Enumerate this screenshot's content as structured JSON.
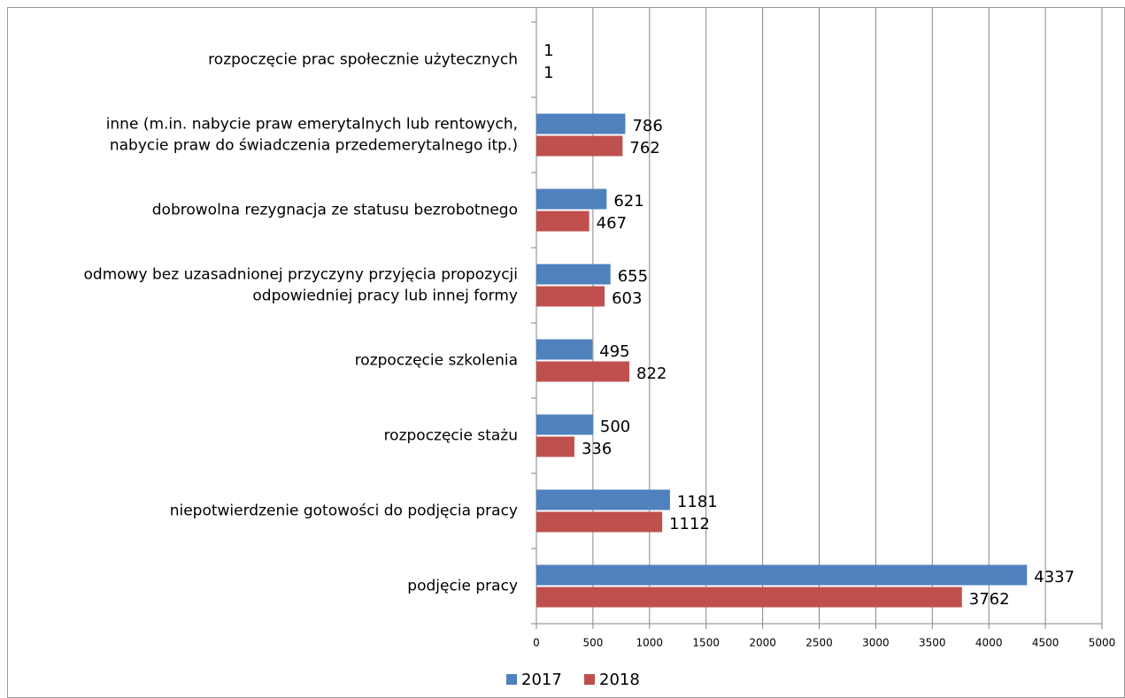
{
  "chart_data": {
    "type": "bar",
    "orientation": "horizontal",
    "categories": [
      [
        "rozpoczęcie prac społecznie użytecznych"
      ],
      [
        "inne (m.in. nabycie praw emerytalnych lub rentowych,",
        "nabycie praw do świadczenia przedemerytalnego itp.)"
      ],
      [
        "dobrowolna rezygnacja ze statusu bezrobotnego"
      ],
      [
        "odmowy bez uzasadnionej przyczyny przyjęcia propozycji",
        "odpowiedniej pracy lub innej formy"
      ],
      [
        "rozpoczęcie szkolenia"
      ],
      [
        "rozpoczęcie stażu"
      ],
      [
        "niepotwierdzenie gotowości do podjęcia pracy"
      ],
      [
        "podjęcie pracy"
      ]
    ],
    "series": [
      {
        "name": "2017",
        "color": "#4f81bd",
        "values": [
          1,
          786,
          621,
          655,
          495,
          500,
          1181,
          4337
        ]
      },
      {
        "name": "2018",
        "color": "#c0504d",
        "values": [
          1,
          762,
          467,
          603,
          822,
          336,
          1112,
          3762
        ]
      }
    ],
    "xlim": [
      0,
      5000
    ],
    "xticks": [
      0,
      500,
      1000,
      1500,
      2000,
      2500,
      3000,
      3500,
      4000,
      4500,
      5000
    ],
    "grid": true,
    "legend": "bottom"
  }
}
